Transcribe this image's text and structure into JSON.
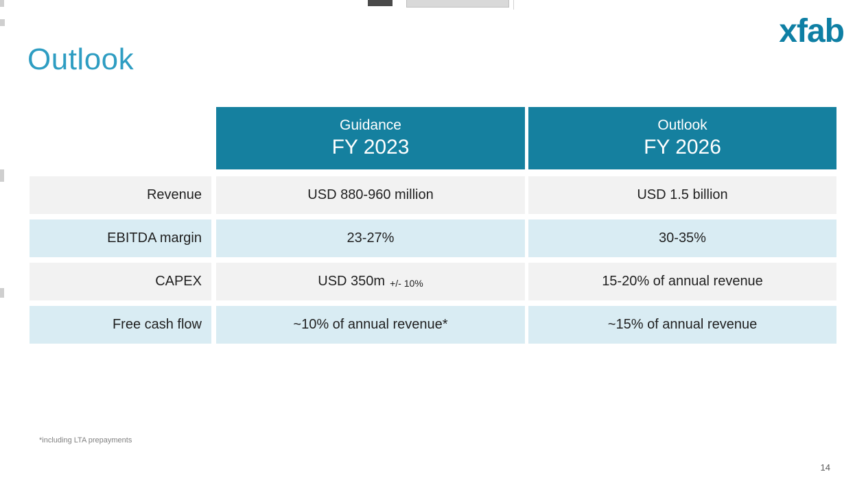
{
  "slide": {
    "title": "Outlook",
    "logo": "xfab",
    "footnote": "*including LTA prepayments",
    "page_number": "14"
  },
  "table": {
    "headers": [
      {
        "top": "Guidance",
        "bottom": "FY 2023"
      },
      {
        "top": "Outlook",
        "bottom": "FY 2026"
      }
    ],
    "rows": [
      {
        "label": "Revenue",
        "value1": "USD 880-960 million",
        "value2": "USD 1.5 billion"
      },
      {
        "label": "EBITDA margin",
        "value1": "23-27%",
        "value2": "30-35%"
      },
      {
        "label": "CAPEX",
        "value1_main": "USD 350m",
        "value1_suffix": "+/- 10%",
        "value2": "15-20% of annual revenue"
      },
      {
        "label": "Free cash flow",
        "value1": "~10% of annual revenue*",
        "value2": "~15% of annual revenue"
      }
    ]
  },
  "colors": {
    "header_teal": "#15809f",
    "title_teal": "#2e9dc2",
    "logo_teal": "#0e7fa4",
    "row_gray": "#f2f2f2",
    "row_blue": "#d9ecf3"
  }
}
